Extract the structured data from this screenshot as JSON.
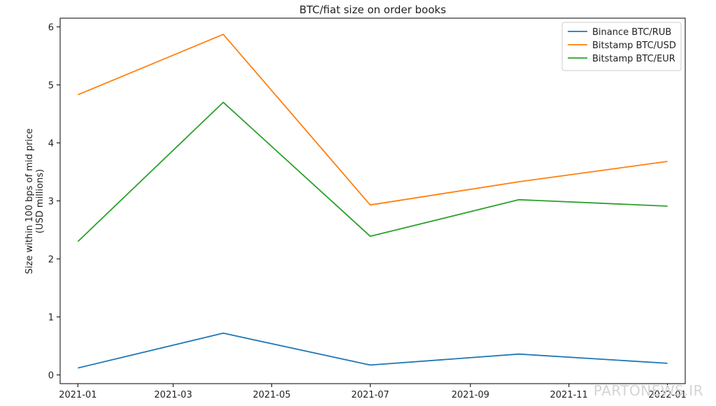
{
  "watermark": "PARTONEWS.IR",
  "chart_data": {
    "type": "line",
    "title": "BTC/fiat size on order books",
    "xlabel": "",
    "ylabel_lines": [
      "Size within 100 bps of mid price",
      "(USD millions)"
    ],
    "x": [
      "2021-01-01",
      "2021-04-01",
      "2021-07-01",
      "2021-10-01",
      "2022-01-01"
    ],
    "xtick_labels": [
      "2021-01",
      "2021-03",
      "2021-05",
      "2021-07",
      "2021-09",
      "2021-11",
      "2022-01"
    ],
    "xtick_dates": [
      "2021-01-01",
      "2021-03-01",
      "2021-05-01",
      "2021-07-01",
      "2021-09-01",
      "2021-11-01",
      "2022-01-01"
    ],
    "xlim": [
      "2020-12-21",
      "2022-01-12"
    ],
    "yticks": [
      0,
      1,
      2,
      3,
      4,
      5,
      6
    ],
    "ylim": [
      -0.15,
      6.15
    ],
    "grid": false,
    "legend_position": "top-right",
    "series": [
      {
        "name": "Binance BTC/RUB",
        "color": "#1f77b4",
        "values": [
          0.12,
          0.72,
          0.17,
          0.36,
          0.2
        ]
      },
      {
        "name": "Bitstamp BTC/USD",
        "color": "#ff7f0e",
        "values": [
          4.83,
          5.87,
          2.93,
          3.33,
          3.68
        ]
      },
      {
        "name": "Bitstamp BTC/EUR",
        "color": "#2ca02c",
        "values": [
          2.3,
          4.7,
          2.39,
          3.02,
          2.91
        ]
      }
    ]
  }
}
